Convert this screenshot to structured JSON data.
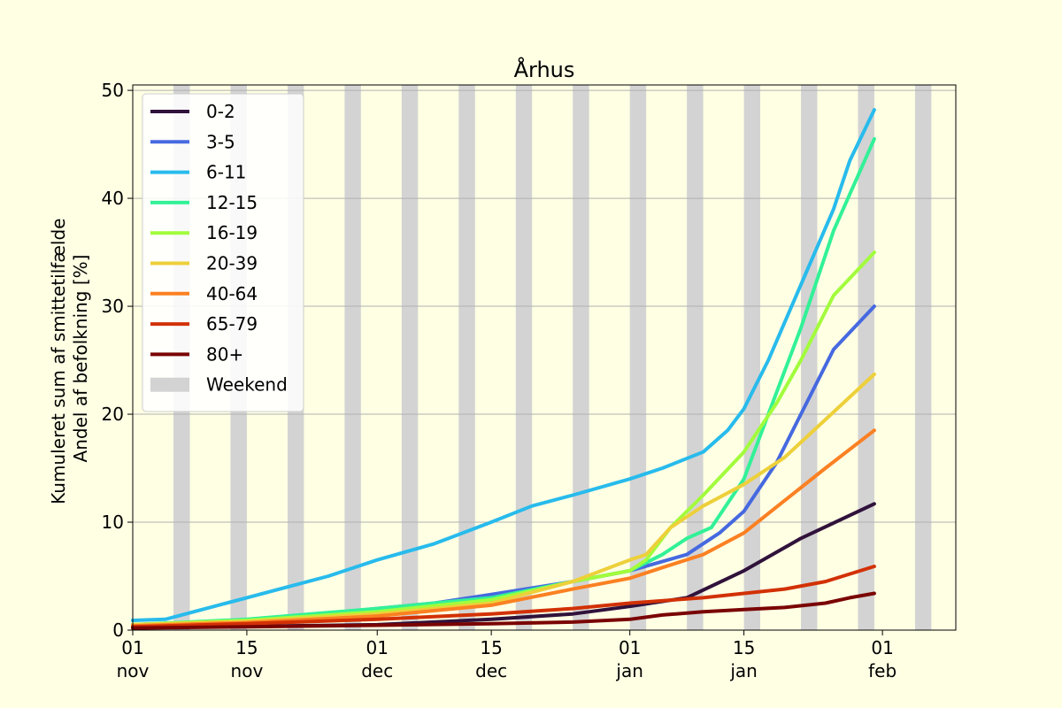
{
  "chart_data": {
    "type": "line",
    "title": "Århus",
    "ylabel_lines": [
      "Kumuleret sum af smittetilfælde",
      "Andel af befolkning [%]"
    ],
    "xlabel": "",
    "x_range": [
      "2021-11-01",
      "2022-02-10"
    ],
    "ylim": [
      0,
      50.5
    ],
    "y_ticks": [
      0,
      10,
      20,
      30,
      40,
      50
    ],
    "x_ticks": [
      {
        "date": "2021-11-01",
        "day": "01",
        "month": "nov"
      },
      {
        "date": "2021-11-15",
        "day": "15",
        "month": "nov"
      },
      {
        "date": "2021-12-01",
        "day": "01",
        "month": "dec"
      },
      {
        "date": "2021-12-15",
        "day": "15",
        "month": "dec"
      },
      {
        "date": "2022-01-01",
        "day": "01",
        "month": "jan"
      },
      {
        "date": "2022-01-15",
        "day": "15",
        "month": "jan"
      },
      {
        "date": "2022-02-01",
        "day": "01",
        "month": "feb"
      }
    ],
    "grid": "horizontal",
    "legend_position": "upper-left",
    "weekend_label": "Weekend",
    "weekend_color": "#d3d3d3",
    "weekends": [
      "2021-11-06",
      "2021-11-13",
      "2021-11-20",
      "2021-11-27",
      "2021-12-04",
      "2021-12-11",
      "2021-12-18",
      "2021-12-25",
      "2022-01-01",
      "2022-01-08",
      "2022-01-15",
      "2022-01-22",
      "2022-01-29",
      "2022-02-05"
    ],
    "series": [
      {
        "name": "0-2",
        "color": "#30123b",
        "points": [
          [
            "2021-11-01",
            0.3
          ],
          [
            "2021-11-15",
            0.35
          ],
          [
            "2021-12-01",
            0.5
          ],
          [
            "2021-12-15",
            1.0
          ],
          [
            "2021-12-25",
            1.5
          ],
          [
            "2022-01-01",
            2.2
          ],
          [
            "2022-01-08",
            3.0
          ],
          [
            "2022-01-15",
            5.5
          ],
          [
            "2022-01-22",
            8.5
          ],
          [
            "2022-01-31",
            11.7
          ]
        ]
      },
      {
        "name": "3-5",
        "color": "#4669e0",
        "points": [
          [
            "2021-11-01",
            0.4
          ],
          [
            "2021-11-15",
            0.8
          ],
          [
            "2021-12-01",
            2.0
          ],
          [
            "2021-12-08",
            2.5
          ],
          [
            "2021-12-15",
            3.3
          ],
          [
            "2021-12-25",
            4.5
          ],
          [
            "2022-01-01",
            5.5
          ],
          [
            "2022-01-08",
            7.0
          ],
          [
            "2022-01-12",
            9.0
          ],
          [
            "2022-01-15",
            11.0
          ],
          [
            "2022-01-19",
            15.5
          ],
          [
            "2022-01-22",
            20.0
          ],
          [
            "2022-01-26",
            26.0
          ],
          [
            "2022-01-31",
            30.0
          ]
        ]
      },
      {
        "name": "6-11",
        "color": "#28bbec",
        "points": [
          [
            "2021-11-01",
            0.9
          ],
          [
            "2021-11-05",
            1.0
          ],
          [
            "2021-11-10",
            2.0
          ],
          [
            "2021-11-15",
            3.0
          ],
          [
            "2021-11-20",
            4.0
          ],
          [
            "2021-11-25",
            5.0
          ],
          [
            "2021-12-01",
            6.5
          ],
          [
            "2021-12-08",
            8.0
          ],
          [
            "2021-12-15",
            10.0
          ],
          [
            "2021-12-20",
            11.5
          ],
          [
            "2021-12-25",
            12.5
          ],
          [
            "2022-01-01",
            14.0
          ],
          [
            "2022-01-05",
            15.0
          ],
          [
            "2022-01-10",
            16.5
          ],
          [
            "2022-01-13",
            18.5
          ],
          [
            "2022-01-15",
            20.5
          ],
          [
            "2022-01-18",
            25.0
          ],
          [
            "2022-01-22",
            32.0
          ],
          [
            "2022-01-26",
            39.0
          ],
          [
            "2022-01-28",
            43.5
          ],
          [
            "2022-01-31",
            48.2
          ]
        ]
      },
      {
        "name": "12-15",
        "color": "#32f197",
        "points": [
          [
            "2021-11-01",
            0.5
          ],
          [
            "2021-11-15",
            1.0
          ],
          [
            "2021-12-01",
            2.0
          ],
          [
            "2021-12-15",
            3.0
          ],
          [
            "2021-12-25",
            4.5
          ],
          [
            "2022-01-01",
            5.5
          ],
          [
            "2022-01-05",
            7.0
          ],
          [
            "2022-01-08",
            8.5
          ],
          [
            "2022-01-11",
            9.5
          ],
          [
            "2022-01-15",
            14.0
          ],
          [
            "2022-01-19",
            22.0
          ],
          [
            "2022-01-22",
            28.0
          ],
          [
            "2022-01-26",
            37.0
          ],
          [
            "2022-01-31",
            45.5
          ]
        ]
      },
      {
        "name": "16-19",
        "color": "#a2fc3c",
        "points": [
          [
            "2021-11-01",
            0.5
          ],
          [
            "2021-11-15",
            0.9
          ],
          [
            "2021-12-01",
            1.7
          ],
          [
            "2021-12-15",
            2.8
          ],
          [
            "2021-12-25",
            4.5
          ],
          [
            "2022-01-01",
            5.5
          ],
          [
            "2022-01-03",
            6.5
          ],
          [
            "2022-01-06",
            9.5
          ],
          [
            "2022-01-10",
            12.5
          ],
          [
            "2022-01-15",
            16.5
          ],
          [
            "2022-01-19",
            21.0
          ],
          [
            "2022-01-22",
            25.0
          ],
          [
            "2022-01-26",
            31.0
          ],
          [
            "2022-01-31",
            35.0
          ]
        ]
      },
      {
        "name": "20-39",
        "color": "#edd03a",
        "points": [
          [
            "2021-11-01",
            0.5
          ],
          [
            "2021-11-15",
            0.8
          ],
          [
            "2021-12-01",
            1.5
          ],
          [
            "2021-12-15",
            2.5
          ],
          [
            "2021-12-25",
            4.5
          ],
          [
            "2022-01-01",
            6.5
          ],
          [
            "2022-01-03",
            7.0
          ],
          [
            "2022-01-06",
            9.5
          ],
          [
            "2022-01-10",
            11.5
          ],
          [
            "2022-01-15",
            13.5
          ],
          [
            "2022-01-20",
            16.0
          ],
          [
            "2022-01-25",
            19.5
          ],
          [
            "2022-01-31",
            23.7
          ]
        ]
      },
      {
        "name": "40-64",
        "color": "#fb8022",
        "points": [
          [
            "2021-11-01",
            0.4
          ],
          [
            "2021-11-15",
            0.7
          ],
          [
            "2021-12-01",
            1.3
          ],
          [
            "2021-12-15",
            2.3
          ],
          [
            "2021-12-25",
            3.8
          ],
          [
            "2022-01-01",
            4.8
          ],
          [
            "2022-01-05",
            5.8
          ],
          [
            "2022-01-10",
            7.0
          ],
          [
            "2022-01-15",
            9.0
          ],
          [
            "2022-01-20",
            12.0
          ],
          [
            "2022-01-25",
            15.0
          ],
          [
            "2022-01-31",
            18.5
          ]
        ]
      },
      {
        "name": "65-79",
        "color": "#d23105",
        "points": [
          [
            "2021-11-01",
            0.3
          ],
          [
            "2021-11-15",
            0.6
          ],
          [
            "2021-12-01",
            1.0
          ],
          [
            "2021-12-15",
            1.5
          ],
          [
            "2021-12-25",
            2.0
          ],
          [
            "2022-01-01",
            2.5
          ],
          [
            "2022-01-10",
            3.0
          ],
          [
            "2022-01-15",
            3.4
          ],
          [
            "2022-01-20",
            3.8
          ],
          [
            "2022-01-25",
            4.5
          ],
          [
            "2022-01-31",
            5.9
          ]
        ]
      },
      {
        "name": "80+",
        "color": "#7a0403",
        "points": [
          [
            "2021-11-01",
            0.2
          ],
          [
            "2021-11-15",
            0.3
          ],
          [
            "2021-12-01",
            0.45
          ],
          [
            "2021-12-15",
            0.6
          ],
          [
            "2021-12-25",
            0.75
          ],
          [
            "2022-01-01",
            1.0
          ],
          [
            "2022-01-05",
            1.4
          ],
          [
            "2022-01-10",
            1.7
          ],
          [
            "2022-01-15",
            1.9
          ],
          [
            "2022-01-20",
            2.1
          ],
          [
            "2022-01-25",
            2.5
          ],
          [
            "2022-01-28",
            3.0
          ],
          [
            "2022-01-31",
            3.4
          ]
        ]
      }
    ]
  }
}
